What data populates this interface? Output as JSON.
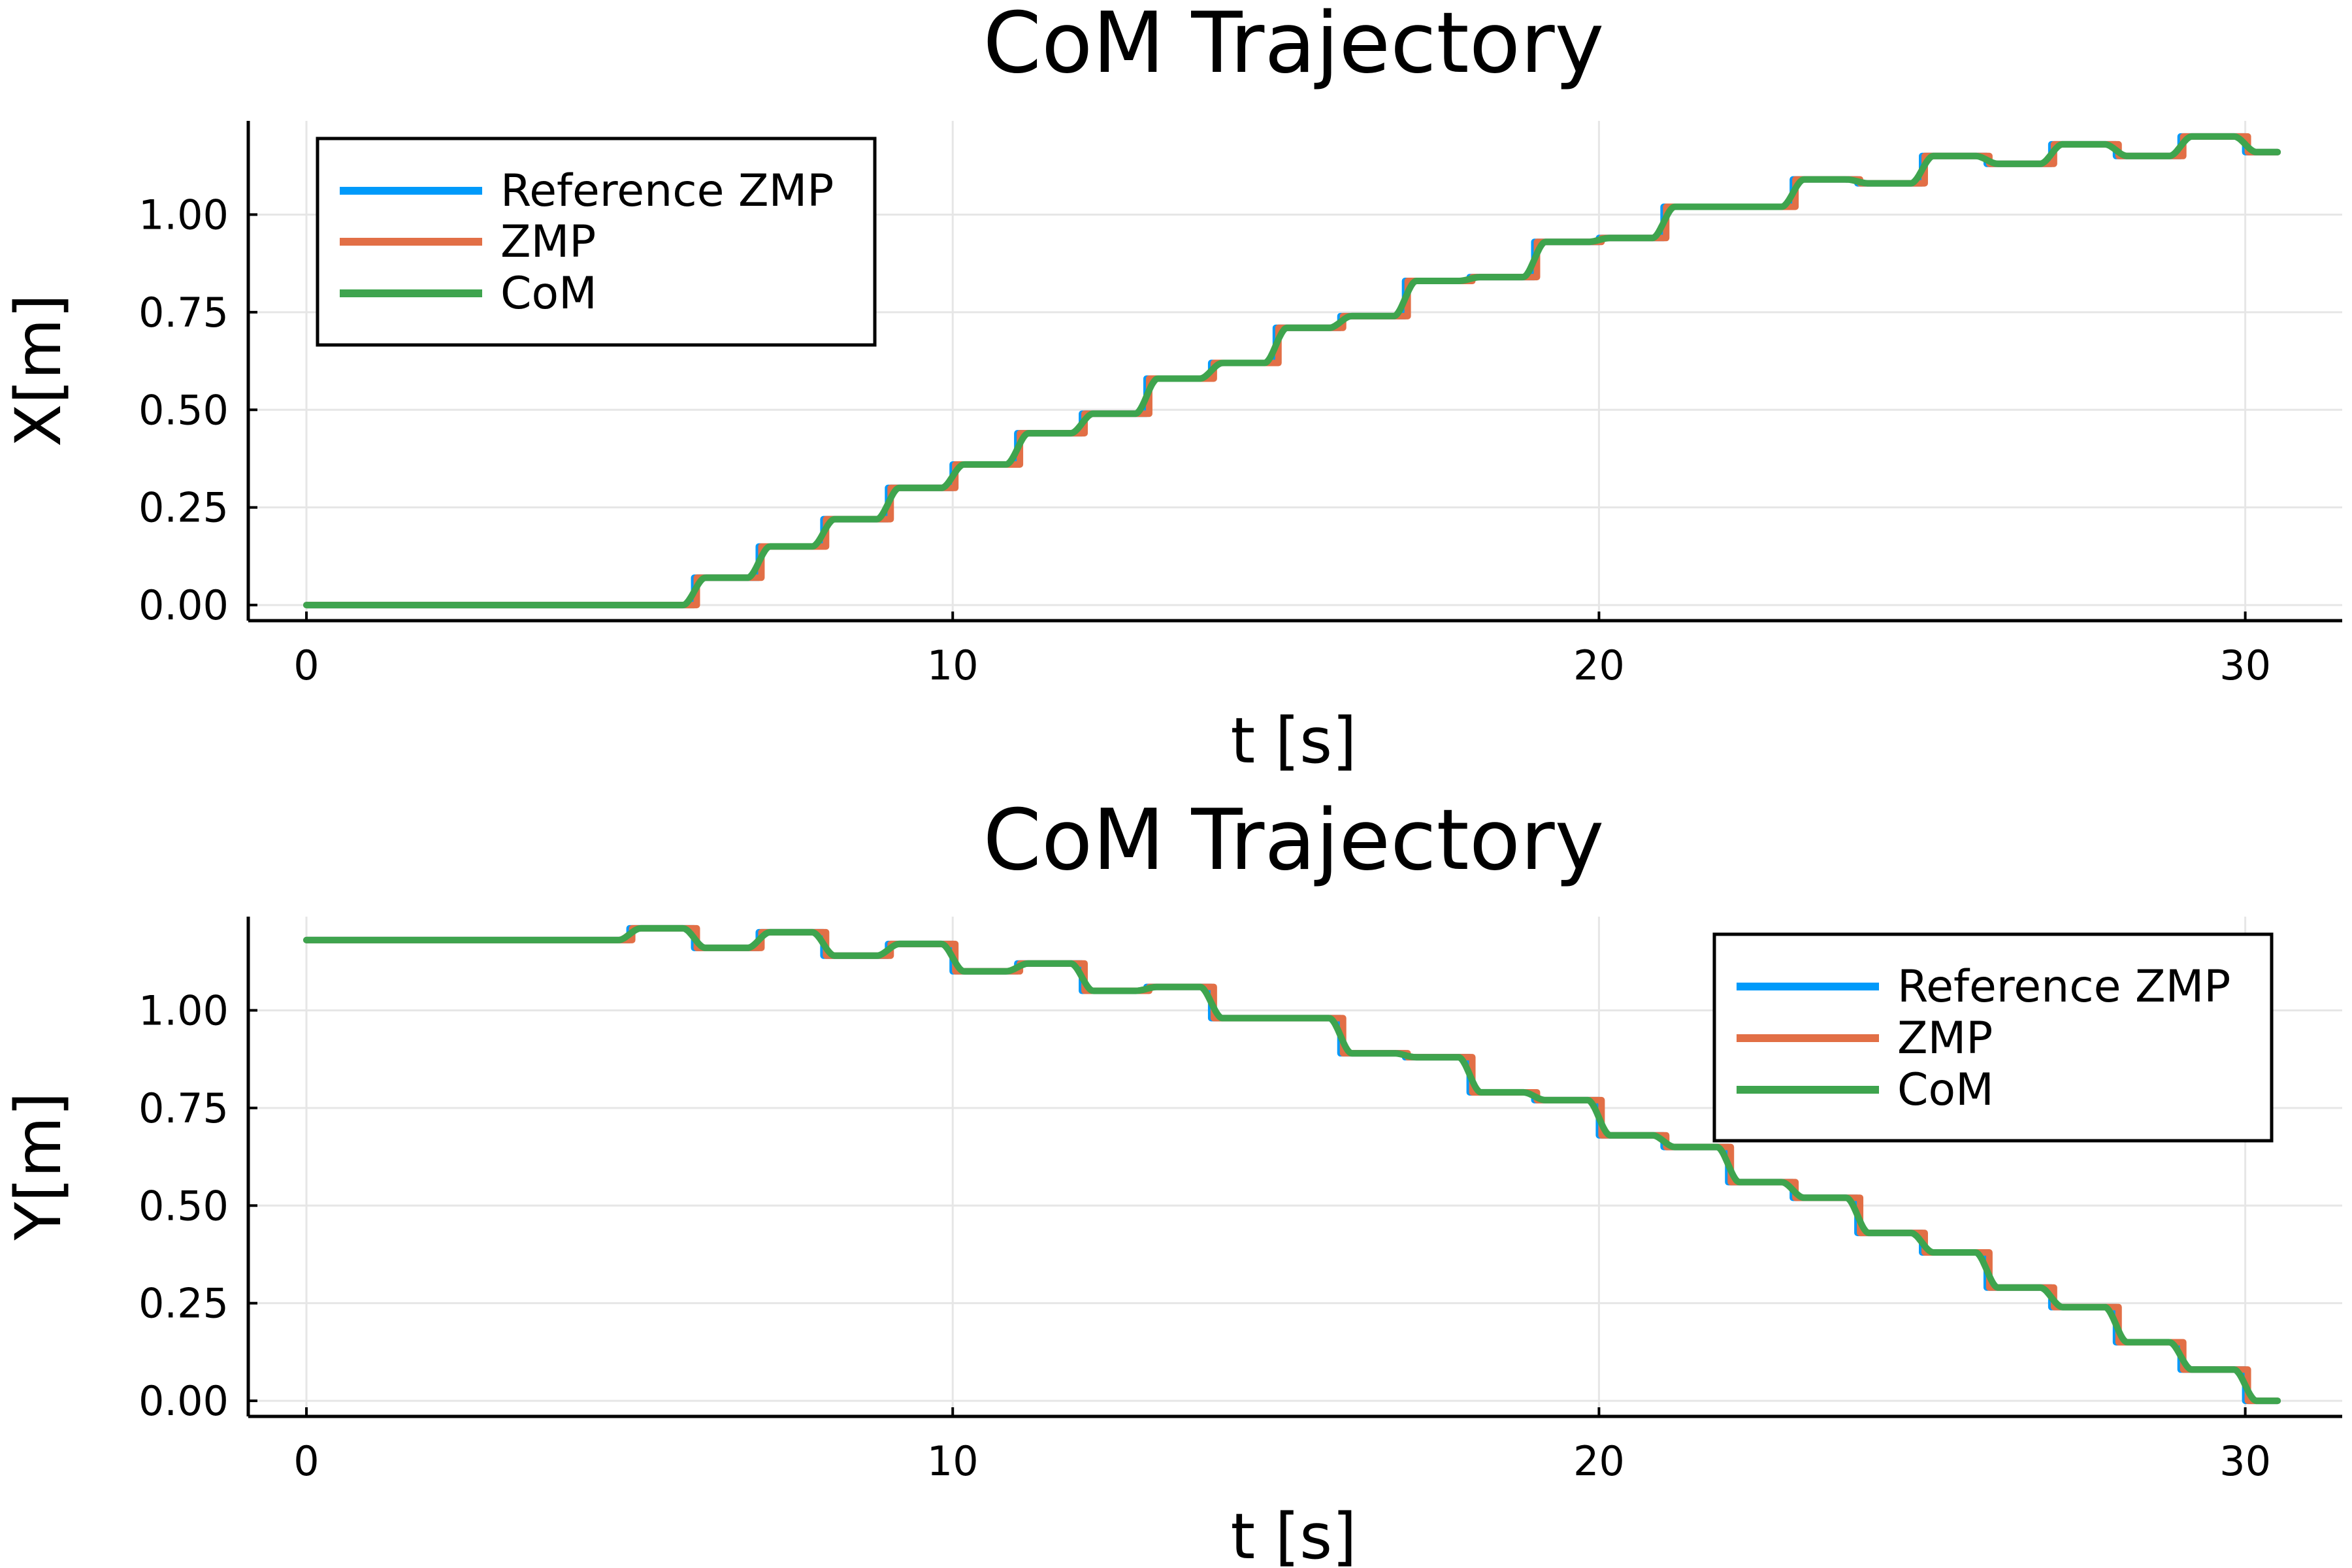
{
  "colors": {
    "reference_zmp": "#009AFA",
    "zmp": "#E26F46",
    "com": "#3EA44E",
    "grid": "#e6e6e6"
  },
  "chart_data": [
    {
      "type": "line",
      "title": "CoM Trajectory",
      "xlabel": "t [s]",
      "ylabel": "X[m]",
      "xlim": [
        -0.9,
        31.5
      ],
      "ylim": [
        -0.04,
        1.24
      ],
      "xticks": [
        "0",
        "10",
        "20",
        "30"
      ],
      "xtick_values": [
        0,
        10,
        20,
        30
      ],
      "yticks": [
        "0.00",
        "0.25",
        "0.50",
        "0.75",
        "1.00"
      ],
      "ytick_values": [
        0,
        0.25,
        0.5,
        0.75,
        1.0
      ],
      "grid": true,
      "legend": "top-left",
      "x_end": 30.5,
      "steps": {
        "start_time": 6.0,
        "step_duration": 1.0,
        "values": [
          0.0,
          0.07,
          0.15,
          0.22,
          0.3,
          0.36,
          0.44,
          0.49,
          0.58,
          0.62,
          0.71,
          0.74,
          0.83,
          0.84,
          0.93,
          0.94,
          1.02,
          1.02,
          1.09,
          1.08,
          1.15,
          1.13,
          1.18,
          1.15,
          1.2,
          1.16
        ]
      },
      "series": [
        {
          "name": "Reference ZMP",
          "kind": "step",
          "color_key": "reference_zmp"
        },
        {
          "name": "ZMP",
          "kind": "step",
          "color_key": "zmp"
        },
        {
          "name": "CoM",
          "kind": "smooth",
          "color_key": "com"
        }
      ]
    },
    {
      "type": "line",
      "title": "CoM Trajectory",
      "xlabel": "t [s]",
      "ylabel": "Y[m]",
      "xlim": [
        -0.9,
        31.5
      ],
      "ylim": [
        -0.04,
        1.24
      ],
      "xticks": [
        "0",
        "10",
        "20",
        "30"
      ],
      "xtick_values": [
        0,
        10,
        20,
        30
      ],
      "yticks": [
        "0.00",
        "0.25",
        "0.50",
        "0.75",
        "1.00"
      ],
      "ytick_values": [
        0,
        0.25,
        0.5,
        0.75,
        1.0
      ],
      "grid": true,
      "legend": "top-right",
      "x_end": 30.5,
      "steps": {
        "start_time": 5.0,
        "step_duration": 1.0,
        "values": [
          1.18,
          1.21,
          1.16,
          1.2,
          1.14,
          1.17,
          1.1,
          1.12,
          1.05,
          1.06,
          0.98,
          0.98,
          0.89,
          0.88,
          0.79,
          0.77,
          0.68,
          0.65,
          0.56,
          0.52,
          0.43,
          0.38,
          0.29,
          0.24,
          0.15,
          0.08,
          0.0
        ]
      },
      "series": [
        {
          "name": "Reference ZMP",
          "kind": "step",
          "color_key": "reference_zmp"
        },
        {
          "name": "ZMP",
          "kind": "step",
          "color_key": "zmp"
        },
        {
          "name": "CoM",
          "kind": "smooth",
          "color_key": "com"
        }
      ]
    }
  ]
}
